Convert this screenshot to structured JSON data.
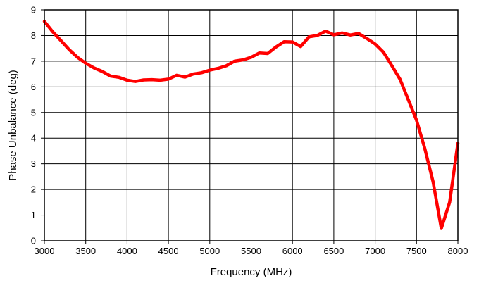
{
  "chart_data": {
    "type": "line",
    "title": "",
    "xlabel": "Frequency (MHz)",
    "ylabel": "Phase Unbalance (deg)",
    "xlim": [
      3000,
      8000
    ],
    "ylim": [
      0,
      9
    ],
    "x_ticks": [
      "3000",
      "3500",
      "4000",
      "4500",
      "5000",
      "5500",
      "6000",
      "6500",
      "7000",
      "7500",
      "8000"
    ],
    "y_ticks": [
      "0",
      "1",
      "2",
      "3",
      "4",
      "5",
      "6",
      "7",
      "8",
      "9"
    ],
    "grid": true,
    "legend": "none",
    "series": [
      {
        "color": "#ff0000",
        "x": [
          3000,
          3100,
          3200,
          3300,
          3400,
          3500,
          3600,
          3700,
          3800,
          3900,
          4000,
          4100,
          4200,
          4300,
          4400,
          4500,
          4600,
          4700,
          4800,
          4900,
          5000,
          5100,
          5200,
          5300,
          5400,
          5500,
          5600,
          5700,
          5800,
          5900,
          6000,
          6100,
          6200,
          6300,
          6400,
          6500,
          6600,
          6700,
          6800,
          6900,
          7000,
          7100,
          7200,
          7300,
          7400,
          7500,
          7600,
          7700,
          7800,
          7900,
          8000
        ],
        "y": [
          8.55,
          8.15,
          7.8,
          7.45,
          7.15,
          6.92,
          6.74,
          6.6,
          6.42,
          6.37,
          6.26,
          6.21,
          6.27,
          6.28,
          6.26,
          6.3,
          6.45,
          6.38,
          6.5,
          6.55,
          6.65,
          6.72,
          6.82,
          7.0,
          7.05,
          7.15,
          7.32,
          7.3,
          7.55,
          7.76,
          7.75,
          7.57,
          7.95,
          8.0,
          8.17,
          8.03,
          8.1,
          8.02,
          8.08,
          7.88,
          7.67,
          7.35,
          6.83,
          6.3,
          5.5,
          4.7,
          3.6,
          2.3,
          0.48,
          1.5,
          3.8
        ]
      }
    ]
  }
}
